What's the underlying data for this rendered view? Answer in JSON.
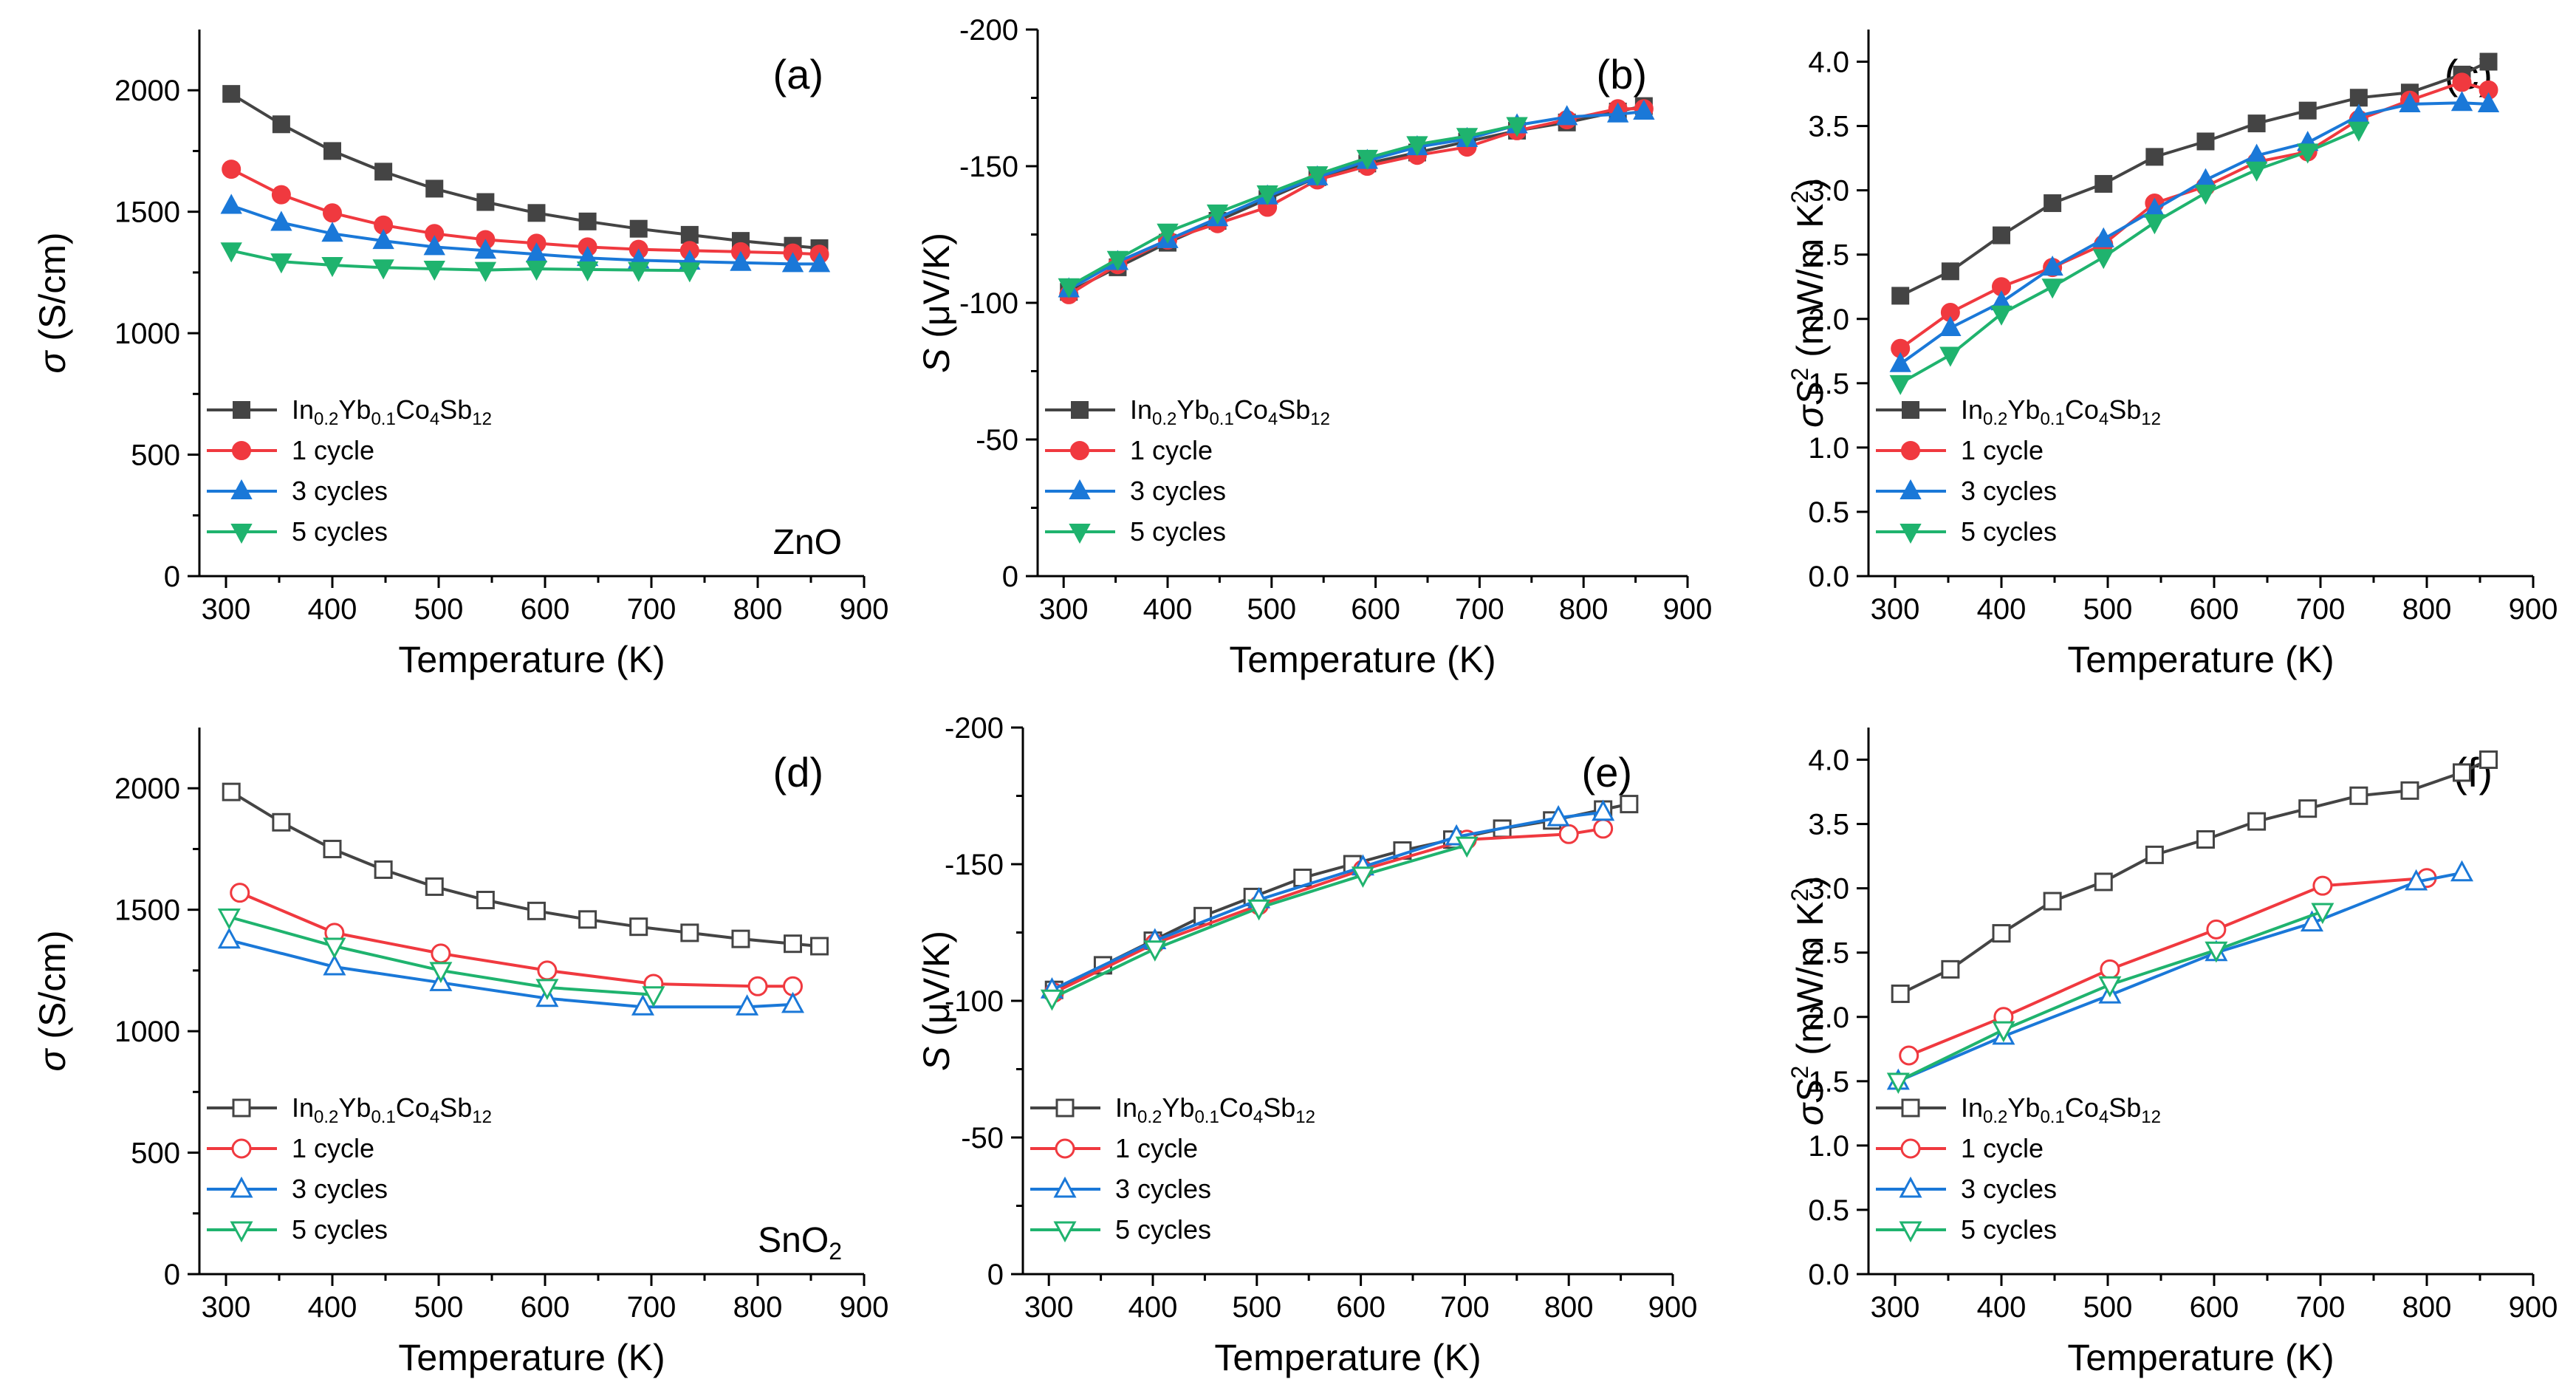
{
  "figure": {
    "description_free": true
  },
  "colors": {
    "base": "#444444",
    "c1": "#f0393f",
    "c3": "#1a78d8",
    "c5": "#1fb36e"
  },
  "chart_data": [
    {
      "id": "a",
      "type": "line",
      "panel_label": "(a)",
      "annotation": "ZnO",
      "annotation_sub": "",
      "xlabel": "Temperature (K)",
      "ylabel_sym": "σ",
      "ylabel_rest": " (S/cm)",
      "xlim": [
        275,
        900
      ],
      "ylim": [
        0,
        2250
      ],
      "xticks": [
        300,
        400,
        500,
        600,
        700,
        800,
        900
      ],
      "xticks_minor": [
        350,
        450,
        550,
        650,
        750,
        850
      ],
      "yticks": [
        0,
        500,
        1000,
        1500,
        2000
      ],
      "yticks_minor": [
        250,
        750,
        1250,
        1750
      ],
      "ytick_labels": [
        "0",
        "500",
        "1000",
        "1500",
        "2000"
      ],
      "yreverse": false,
      "marker_fill": "filled",
      "legend": [
        "In0.2Yb0.1Co4Sb12",
        "1 cycle",
        "3 cycles",
        "5 cycles"
      ],
      "series": [
        {
          "name": "In0.2Yb0.1Co4Sb12",
          "color": "#444444",
          "marker": "square",
          "x": [
            305,
            352,
            400,
            448,
            496,
            544,
            592,
            640,
            688,
            736,
            784,
            833,
            858
          ],
          "y": [
            1985,
            1860,
            1750,
            1665,
            1595,
            1540,
            1495,
            1460,
            1430,
            1405,
            1380,
            1360,
            1350
          ]
        },
        {
          "name": "1 cycle",
          "color": "#f0393f",
          "marker": "circle",
          "x": [
            305,
            352,
            400,
            448,
            496,
            544,
            592,
            640,
            688,
            736,
            784,
            833,
            858
          ],
          "y": [
            1675,
            1570,
            1495,
            1445,
            1410,
            1385,
            1370,
            1355,
            1345,
            1340,
            1335,
            1330,
            1325
          ]
        },
        {
          "name": "3 cycles",
          "color": "#1a78d8",
          "marker": "triangle-up",
          "x": [
            305,
            352,
            400,
            448,
            496,
            544,
            592,
            640,
            688,
            736,
            784,
            833,
            858
          ],
          "y": [
            1525,
            1455,
            1410,
            1380,
            1355,
            1340,
            1325,
            1310,
            1300,
            1295,
            1290,
            1285,
            1285
          ]
        },
        {
          "name": "5 cycles",
          "color": "#1fb36e",
          "marker": "triangle-down",
          "x": [
            305,
            352,
            400,
            448,
            496,
            544,
            592,
            640,
            688,
            736
          ],
          "y": [
            1340,
            1295,
            1280,
            1270,
            1265,
            1260,
            1265,
            1262,
            1260,
            1258
          ]
        }
      ]
    },
    {
      "id": "b",
      "type": "line",
      "panel_label": "(b)",
      "annotation": "",
      "annotation_sub": "",
      "xlabel": "Temperature (K)",
      "ylabel_sym": "S",
      "ylabel_rest": " (μV/K)",
      "xlim": [
        275,
        900
      ],
      "ylim": [
        0,
        -200
      ],
      "xticks": [
        300,
        400,
        500,
        600,
        700,
        800,
        900
      ],
      "xticks_minor": [
        350,
        450,
        550,
        650,
        750,
        850
      ],
      "yticks": [
        0,
        -50,
        -100,
        -150,
        -200
      ],
      "yticks_minor": [
        -25,
        -75,
        -125,
        -175
      ],
      "ytick_labels": [
        "0",
        "-50",
        "-100",
        "-150",
        "-200"
      ],
      "yreverse": true,
      "marker_fill": "filled",
      "legend": [
        "In0.2Yb0.1Co4Sb12",
        "1 cycle",
        "3 cycles",
        "5 cycles"
      ],
      "series": [
        {
          "name": "In0.2Yb0.1Co4Sb12",
          "color": "#444444",
          "marker": "square",
          "x": [
            305,
            352,
            400,
            448,
            496,
            544,
            592,
            640,
            688,
            736,
            784,
            833,
            858
          ],
          "y": [
            -104,
            -113,
            -122,
            -130,
            -138,
            -146,
            -151,
            -155,
            -159,
            -163,
            -166,
            -170,
            -172
          ]
        },
        {
          "name": "1 cycle",
          "color": "#f0393f",
          "marker": "circle",
          "x": [
            305,
            352,
            400,
            448,
            496,
            544,
            592,
            640,
            688,
            736,
            784,
            833,
            858
          ],
          "y": [
            -103,
            -114,
            -123,
            -129,
            -135,
            -145,
            -150,
            -154,
            -157,
            -163,
            -167,
            -171,
            -171
          ]
        },
        {
          "name": "3 cycles",
          "color": "#1a78d8",
          "marker": "triangle-up",
          "x": [
            305,
            352,
            400,
            448,
            496,
            544,
            592,
            640,
            688,
            736,
            784,
            833,
            858
          ],
          "y": [
            -105,
            -115,
            -123,
            -131,
            -139,
            -146,
            -152,
            -157,
            -160,
            -165,
            -168,
            -169,
            -170
          ]
        },
        {
          "name": "5 cycles",
          "color": "#1fb36e",
          "marker": "triangle-down",
          "x": [
            305,
            352,
            400,
            448,
            496,
            544,
            592,
            640,
            688,
            736
          ],
          "y": [
            -106,
            -116,
            -126,
            -133,
            -140,
            -147,
            -153,
            -158,
            -161,
            -165
          ]
        }
      ]
    },
    {
      "id": "c",
      "type": "line",
      "panel_label": "(c)",
      "annotation": "",
      "annotation_sub": "",
      "xlabel": "Temperature (K)",
      "ylabel_sym": "σS",
      "ylabel_rest": " (mW/m K",
      "xlim": [
        275,
        900
      ],
      "ylim": [
        0,
        4.25
      ],
      "xticks": [
        300,
        400,
        500,
        600,
        700,
        800,
        900
      ],
      "xticks_minor": [
        350,
        450,
        550,
        650,
        750,
        850
      ],
      "yticks": [
        0,
        0.5,
        1,
        1.5,
        2,
        2.5,
        3,
        3.5,
        4
      ],
      "yticks_minor": [],
      "ytick_labels": [
        "0.0",
        "0.5",
        "1.0",
        "1.5",
        "2.0",
        "2.5",
        "3.0",
        "3.5",
        "4.0"
      ],
      "yreverse": false,
      "marker_fill": "filled",
      "legend": [
        "In0.2Yb0.1Co4Sb12",
        "1 cycle",
        "3 cycles",
        "5 cycles"
      ],
      "series": [
        {
          "name": "In0.2Yb0.1Co4Sb12",
          "color": "#444444",
          "marker": "square",
          "x": [
            305,
            352,
            400,
            448,
            496,
            544,
            592,
            640,
            688,
            736,
            784,
            833,
            858
          ],
          "y": [
            2.18,
            2.37,
            2.65,
            2.9,
            3.05,
            3.26,
            3.38,
            3.52,
            3.62,
            3.72,
            3.76,
            3.9,
            4.0
          ]
        },
        {
          "name": "1 cycle",
          "color": "#f0393f",
          "marker": "circle",
          "x": [
            305,
            352,
            400,
            448,
            496,
            544,
            592,
            640,
            688,
            736,
            784,
            833,
            858
          ],
          "y": [
            1.77,
            2.05,
            2.25,
            2.4,
            2.58,
            2.9,
            3.03,
            3.22,
            3.3,
            3.55,
            3.7,
            3.84,
            3.78
          ]
        },
        {
          "name": "3 cycles",
          "color": "#1a78d8",
          "marker": "triangle-up",
          "x": [
            305,
            352,
            400,
            448,
            496,
            544,
            592,
            640,
            688,
            736,
            784,
            833,
            858
          ],
          "y": [
            1.65,
            1.93,
            2.13,
            2.4,
            2.62,
            2.85,
            3.08,
            3.27,
            3.37,
            3.58,
            3.67,
            3.68,
            3.67
          ]
        },
        {
          "name": "5 cycles",
          "color": "#1fb36e",
          "marker": "triangle-down",
          "x": [
            305,
            352,
            400,
            448,
            496,
            544,
            592,
            640,
            688,
            736
          ],
          "y": [
            1.5,
            1.72,
            2.04,
            2.25,
            2.48,
            2.75,
            2.98,
            3.16,
            3.3,
            3.47
          ]
        }
      ]
    },
    {
      "id": "d",
      "type": "line",
      "panel_label": "(d)",
      "annotation": "SnO",
      "annotation_sub": "2",
      "xlabel": "Temperature (K)",
      "ylabel_sym": "σ",
      "ylabel_rest": " (S/cm)",
      "xlim": [
        275,
        900
      ],
      "ylim": [
        0,
        2250
      ],
      "xticks": [
        300,
        400,
        500,
        600,
        700,
        800,
        900
      ],
      "xticks_minor": [
        350,
        450,
        550,
        650,
        750,
        850
      ],
      "yticks": [
        0,
        500,
        1000,
        1500,
        2000
      ],
      "yticks_minor": [
        250,
        750,
        1250,
        1750
      ],
      "ytick_labels": [
        "0",
        "500",
        "1000",
        "1500",
        "2000"
      ],
      "yreverse": false,
      "marker_fill": "open",
      "legend": [
        "In0.2Yb0.1Co4Sb12",
        "1 cycle",
        "3 cycles",
        "5 cycles"
      ],
      "series": [
        {
          "name": "In0.2Yb0.1Co4Sb12",
          "color": "#444444",
          "marker": "square",
          "x": [
            305,
            352,
            400,
            448,
            496,
            544,
            592,
            640,
            688,
            736,
            784,
            833,
            858
          ],
          "y": [
            1985,
            1860,
            1750,
            1665,
            1595,
            1540,
            1495,
            1460,
            1430,
            1405,
            1380,
            1360,
            1350
          ]
        },
        {
          "name": "1 cycle",
          "color": "#f0393f",
          "marker": "circle",
          "x": [
            313,
            402,
            502,
            602,
            702,
            800,
            833
          ],
          "y": [
            1570,
            1405,
            1320,
            1250,
            1195,
            1185,
            1185
          ]
        },
        {
          "name": "3 cycles",
          "color": "#1a78d8",
          "marker": "triangle-up",
          "x": [
            303,
            402,
            502,
            602,
            692,
            790,
            833
          ],
          "y": [
            1375,
            1265,
            1200,
            1135,
            1100,
            1100,
            1110
          ]
        },
        {
          "name": "5 cycles",
          "color": "#1fb36e",
          "marker": "triangle-down",
          "x": [
            303,
            402,
            502,
            602,
            702
          ],
          "y": [
            1470,
            1350,
            1250,
            1180,
            1150
          ]
        }
      ]
    },
    {
      "id": "e",
      "type": "line",
      "panel_label": "(e)",
      "annotation": "",
      "annotation_sub": "",
      "xlabel": "Temperature (K)",
      "ylabel_sym": "S",
      "ylabel_rest": " (μV/K)",
      "xlim": [
        275,
        900
      ],
      "ylim": [
        0,
        -200
      ],
      "xticks": [
        300,
        400,
        500,
        600,
        700,
        800,
        900
      ],
      "xticks_minor": [
        350,
        450,
        550,
        650,
        750,
        850
      ],
      "yticks": [
        0,
        -50,
        -100,
        -150,
        -200
      ],
      "yticks_minor": [
        -25,
        -75,
        -125,
        -175
      ],
      "ytick_labels": [
        "0",
        "-50",
        "-100",
        "-150",
        "-200"
      ],
      "yreverse": true,
      "marker_fill": "open",
      "legend": [
        "In0.2Yb0.1Co4Sb12",
        "1 cycle",
        "3 cycles",
        "5 cycles"
      ],
      "series": [
        {
          "name": "In0.2Yb0.1Co4Sb12",
          "color": "#444444",
          "marker": "square",
          "x": [
            305,
            352,
            400,
            448,
            496,
            544,
            592,
            640,
            688,
            736,
            784,
            833,
            858
          ],
          "y": [
            -104,
            -113,
            -122,
            -131,
            -138,
            -145,
            -150,
            -155,
            -159,
            -163,
            -166,
            -170,
            -172
          ]
        },
        {
          "name": "1 cycle",
          "color": "#f0393f",
          "marker": "circle",
          "x": [
            305,
            402,
            502,
            602,
            702,
            800,
            833
          ],
          "y": [
            -103,
            -121,
            -135,
            -148,
            -159,
            -161,
            -163
          ]
        },
        {
          "name": "3 cycles",
          "color": "#1a78d8",
          "marker": "triangle-up",
          "x": [
            303,
            402,
            502,
            602,
            692,
            790,
            833
          ],
          "y": [
            -104,
            -122,
            -137,
            -149,
            -160,
            -167,
            -169
          ]
        },
        {
          "name": "5 cycles",
          "color": "#1fb36e",
          "marker": "triangle-down",
          "x": [
            303,
            402,
            502,
            602,
            702
          ],
          "y": [
            -101,
            -119,
            -134,
            -146,
            -157
          ]
        }
      ]
    },
    {
      "id": "f",
      "type": "line",
      "panel_label": "(f)",
      "annotation": "",
      "annotation_sub": "",
      "xlabel": "Temperature (K)",
      "ylabel_sym": "σS",
      "ylabel_rest": " (mW/m K",
      "xlim": [
        275,
        900
      ],
      "ylim": [
        0,
        4.25
      ],
      "xticks": [
        300,
        400,
        500,
        600,
        700,
        800,
        900
      ],
      "xticks_minor": [
        350,
        450,
        550,
        650,
        750,
        850
      ],
      "yticks": [
        0,
        0.5,
        1,
        1.5,
        2,
        2.5,
        3,
        3.5,
        4
      ],
      "yticks_minor": [],
      "ytick_labels": [
        "0.0",
        "0.5",
        "1.0",
        "1.5",
        "2.0",
        "2.5",
        "3.0",
        "3.5",
        "4.0"
      ],
      "yreverse": false,
      "marker_fill": "open",
      "legend": [
        "In0.2Yb0.1Co4Sb12",
        "1 cycle",
        "3 cycles",
        "5 cycles"
      ],
      "series": [
        {
          "name": "In0.2Yb0.1Co4Sb12",
          "color": "#444444",
          "marker": "square",
          "x": [
            305,
            352,
            400,
            448,
            496,
            544,
            592,
            640,
            688,
            736,
            784,
            833,
            858
          ],
          "y": [
            2.18,
            2.37,
            2.65,
            2.9,
            3.05,
            3.26,
            3.38,
            3.52,
            3.62,
            3.72,
            3.76,
            3.9,
            4.0
          ]
        },
        {
          "name": "1 cycle",
          "color": "#f0393f",
          "marker": "circle",
          "x": [
            313,
            402,
            502,
            602,
            702,
            800
          ],
          "y": [
            1.7,
            2.0,
            2.37,
            2.68,
            3.02,
            3.08
          ]
        },
        {
          "name": "3 cycles",
          "color": "#1a78d8",
          "marker": "triangle-up",
          "x": [
            303,
            402,
            502,
            602,
            692,
            790,
            833
          ],
          "y": [
            1.5,
            1.85,
            2.17,
            2.5,
            2.73,
            3.05,
            3.12
          ]
        },
        {
          "name": "5 cycles",
          "color": "#1fb36e",
          "marker": "triangle-down",
          "x": [
            303,
            402,
            502,
            602,
            702
          ],
          "y": [
            1.5,
            1.9,
            2.25,
            2.52,
            2.82
          ]
        }
      ]
    }
  ]
}
